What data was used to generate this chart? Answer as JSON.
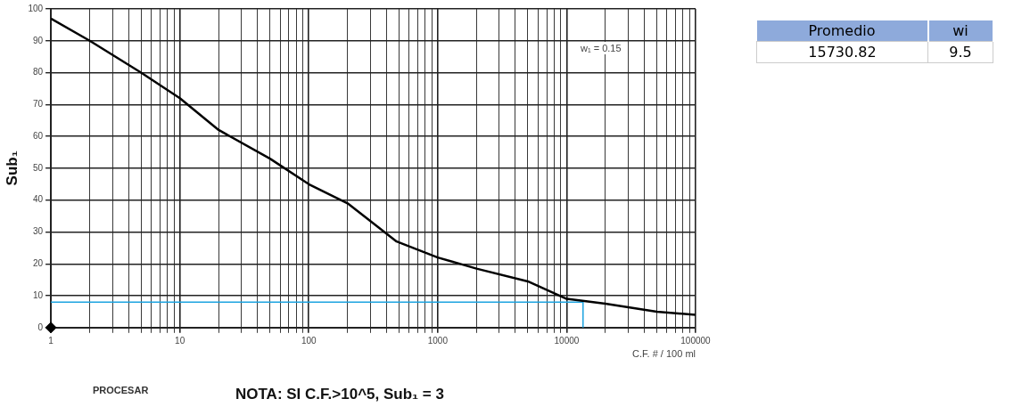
{
  "chart_data": [
    {
      "type": "line",
      "xlabel": "C.F. # / 100 ml",
      "ylabel": "Sub₁",
      "log": "x",
      "grid": true,
      "legend": false,
      "line_style": "solid",
      "xlim": [
        1,
        100000
      ],
      "ylim": [
        0,
        100
      ],
      "xticks": [
        1,
        {
          "value": 2,
          "label": null
        },
        {
          "value": 3,
          "label": null
        },
        {
          "value": 4,
          "label": null
        },
        {
          "value": 5,
          "label": null
        },
        {
          "value": 6,
          "label": null
        },
        {
          "value": 7,
          "label": null
        },
        {
          "value": 8,
          "label": null
        },
        {
          "value": 9,
          "label": null
        },
        10,
        {
          "value": 20,
          "label": null
        },
        {
          "value": 30,
          "label": null
        },
        {
          "value": 40,
          "label": null
        },
        {
          "value": 50,
          "label": null
        },
        {
          "value": 60,
          "label": null
        },
        {
          "value": 70,
          "label": null
        },
        {
          "value": 80,
          "label": null
        },
        {
          "value": 90,
          "label": null
        },
        100,
        {
          "value": 200,
          "label": null
        },
        {
          "value": 300,
          "label": null
        },
        {
          "value": 400,
          "label": null
        },
        {
          "value": 500,
          "label": null
        },
        {
          "value": 600,
          "label": null
        },
        {
          "value": 700,
          "label": null
        },
        {
          "value": 800,
          "label": null
        },
        {
          "value": 900,
          "label": null
        },
        1000,
        {
          "value": 2000,
          "label": null
        },
        {
          "value": 3000,
          "label": null
        },
        {
          "value": 4000,
          "label": null
        },
        {
          "value": 5000,
          "label": null
        },
        {
          "value": 6000,
          "label": null
        },
        {
          "value": 7000,
          "label": null
        },
        {
          "value": 8000,
          "label": null
        },
        {
          "value": 9000,
          "label": null
        },
        10000,
        {
          "value": 20000,
          "label": null
        },
        {
          "value": 30000,
          "label": null
        },
        {
          "value": 40000,
          "label": null
        },
        {
          "value": 50000,
          "label": null
        },
        {
          "value": 60000,
          "label": null
        },
        {
          "value": 70000,
          "label": null
        },
        {
          "value": 80000,
          "label": null
        },
        {
          "value": 90000,
          "label": null
        },
        100000
      ],
      "yticks": [
        0,
        10,
        20,
        30,
        40,
        50,
        60,
        70,
        80,
        90,
        100
      ],
      "annotations": [
        "w₁ = 0.15",
        "PROCESAR",
        "NOTA: SI C.F.>10^5, Sub₁ = 3"
      ],
      "series": [
        {
          "color": "#000000",
          "marker": "none",
          "x": [
            1,
            2,
            5,
            10,
            20,
            50,
            100,
            200,
            480,
            1000,
            2000,
            5000,
            10000,
            20000,
            50000,
            100000
          ],
          "values": [
            97,
            90,
            80,
            72,
            62,
            53,
            45,
            39,
            27,
            22,
            18.5,
            14.5,
            9,
            7.5,
            5,
            4
          ]
        },
        {
          "color": "#1ca3e0",
          "marker": "none",
          "x": [
            1,
            13400,
            13400
          ],
          "values": [
            8,
            8,
            0
          ]
        },
        {
          "type": "scatter",
          "color": "#000000",
          "marker": "diamond",
          "x": [
            1
          ],
          "values": [
            0
          ]
        }
      ]
    },
    {
      "type": "other",
      "categories": [
        "Promedio",
        "wi"
      ],
      "values": [
        15730.82,
        9.5
      ],
      "data_labels": true
    }
  ]
}
